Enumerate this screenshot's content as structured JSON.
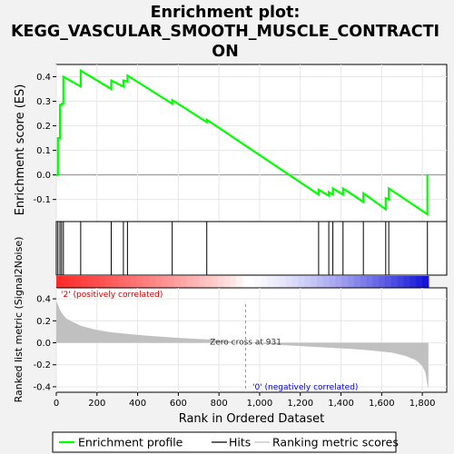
{
  "chart_data": {
    "type": "line",
    "title_line1": "Enrichment plot:",
    "title_line2": "KEGG_VASCULAR_SMOOTH_MUSCLE_CONTRACTI",
    "title_line3": "ON",
    "es_ylabel": "Enrichment score (ES)",
    "es_yticks": [
      0.4,
      0.3,
      0.2,
      0.1,
      0.0,
      -0.1
    ],
    "es_ytick_labels": [
      "0.4",
      "0.3",
      "0.2",
      "0.1",
      "0.0",
      "-0.1"
    ],
    "es_ylim": [
      -0.19,
      0.45
    ],
    "rank_ylabel": "Ranked list metric (Signal2Noise)",
    "rank_yticks": [
      0.4,
      0.2,
      0.0,
      -0.2,
      -0.4
    ],
    "rank_ytick_labels": [
      "0.4",
      "0.2",
      "0.0",
      "-0.2",
      "-0.4"
    ],
    "rank_ylim": [
      -0.45,
      0.5
    ],
    "xlabel": "Rank in Ordered Dataset",
    "xticks": [
      0,
      200,
      400,
      600,
      800,
      1000,
      1200,
      1400,
      1600,
      1800
    ],
    "xtick_labels": [
      "0",
      "200",
      "400",
      "600",
      "800",
      "1,000",
      "1,200",
      "1,400",
      "1,600",
      "1,800"
    ],
    "xlim": [
      0,
      1920
    ],
    "n_genes": 1830,
    "zero_cross": 931,
    "zero_cross_label": "Zero cross at 931",
    "pos_label": "'2' (positively correlated)",
    "neg_label": "'0' (negatively correlated)",
    "hits": [
      8,
      18,
      26,
      35,
      120,
      270,
      330,
      350,
      570,
      740,
      1290,
      1340,
      1360,
      1410,
      1510,
      1620,
      1635,
      1825
    ],
    "es_points": [
      [
        0,
        0.0
      ],
      [
        8,
        0.0
      ],
      [
        8,
        0.15
      ],
      [
        18,
        0.15
      ],
      [
        18,
        0.285
      ],
      [
        26,
        0.285
      ],
      [
        26,
        0.29
      ],
      [
        35,
        0.29
      ],
      [
        35,
        0.4
      ],
      [
        120,
        0.36
      ],
      [
        120,
        0.425
      ],
      [
        270,
        0.35
      ],
      [
        270,
        0.385
      ],
      [
        330,
        0.36
      ],
      [
        330,
        0.385
      ],
      [
        350,
        0.38
      ],
      [
        350,
        0.405
      ],
      [
        570,
        0.29
      ],
      [
        570,
        0.305
      ],
      [
        740,
        0.215
      ],
      [
        740,
        0.225
      ],
      [
        1290,
        -0.08
      ],
      [
        1290,
        -0.06
      ],
      [
        1340,
        -0.085
      ],
      [
        1340,
        -0.07
      ],
      [
        1360,
        -0.08
      ],
      [
        1360,
        -0.055
      ],
      [
        1410,
        -0.08
      ],
      [
        1410,
        -0.055
      ],
      [
        1510,
        -0.11
      ],
      [
        1510,
        -0.075
      ],
      [
        1620,
        -0.14
      ],
      [
        1620,
        -0.095
      ],
      [
        1635,
        -0.1
      ],
      [
        1635,
        -0.055
      ],
      [
        1825,
        -0.16
      ],
      [
        1825,
        0.0
      ]
    ],
    "metric_points": [
      [
        0,
        0.38
      ],
      [
        10,
        0.34
      ],
      [
        20,
        0.29
      ],
      [
        35,
        0.25
      ],
      [
        50,
        0.22
      ],
      [
        80,
        0.19
      ],
      [
        120,
        0.155
      ],
      [
        180,
        0.125
      ],
      [
        250,
        0.1
      ],
      [
        350,
        0.08
      ],
      [
        450,
        0.065
      ],
      [
        600,
        0.045
      ],
      [
        750,
        0.03
      ],
      [
        931,
        0.0
      ],
      [
        1100,
        -0.02
      ],
      [
        1300,
        -0.04
      ],
      [
        1450,
        -0.055
      ],
      [
        1550,
        -0.07
      ],
      [
        1650,
        -0.09
      ],
      [
        1720,
        -0.12
      ],
      [
        1770,
        -0.16
      ],
      [
        1800,
        -0.21
      ],
      [
        1815,
        -0.27
      ],
      [
        1825,
        -0.38
      ],
      [
        1830,
        -0.42
      ]
    ],
    "colors": {
      "es_line": "#00ff00",
      "hit": "#000000",
      "metric_fill": "#c0c0c0",
      "pos_label": "#cc0000",
      "neg_label": "#0000cc",
      "zero_line": "#999999"
    },
    "legend": {
      "items": [
        {
          "label": "Enrichment profile",
          "color": "#00ff00"
        },
        {
          "label": "Hits",
          "color": "#000000"
        },
        {
          "label": "Ranking metric scores",
          "color": "#c0c0c0"
        }
      ]
    }
  }
}
